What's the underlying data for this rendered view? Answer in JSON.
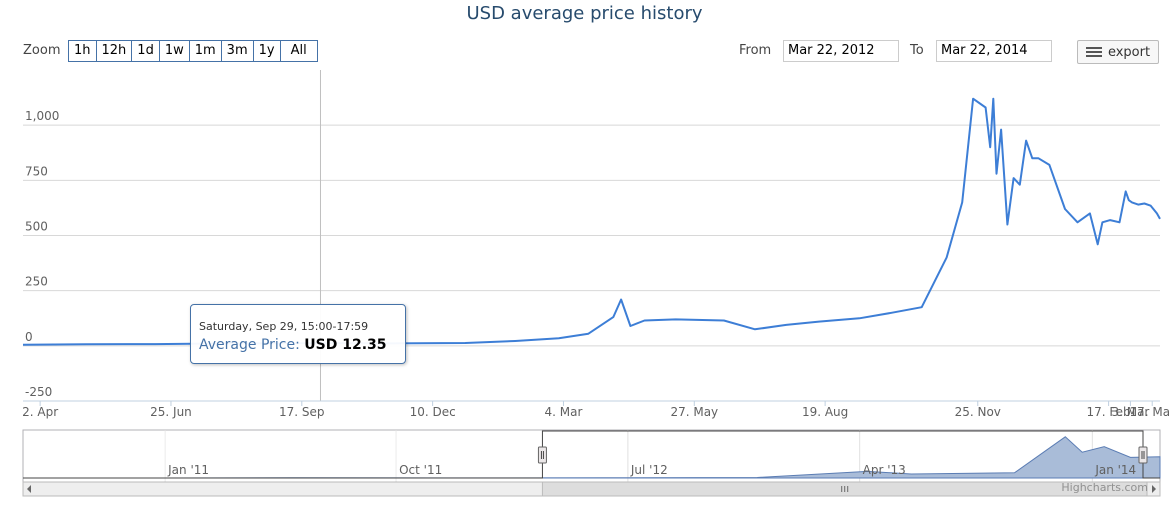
{
  "title": "USD average price history",
  "range_selector": {
    "zoom_label": "Zoom",
    "buttons": [
      "1h",
      "12h",
      "1d",
      "1w",
      "1m",
      "3m",
      "1y",
      "All"
    ],
    "from_label": "From",
    "from_value": "Mar 22, 2012",
    "to_label": "To",
    "to_value": "Mar 22, 2014"
  },
  "export_label": "export",
  "credits": "Highcharts.com",
  "tooltip": {
    "date": "Saturday, Sep 29, 15:00-17:59",
    "series_label": "Average Price:",
    "value": "USD 12.35"
  },
  "colors": {
    "series": "#4572a7",
    "line": "#3d7ed6",
    "navigator_fill": "#a9bcd8",
    "navigator_line": "#5b7db4"
  },
  "chart_data": [
    {
      "type": "line",
      "title": "USD average price history",
      "xlabel": "",
      "ylabel": "",
      "ylim": [
        -250,
        1250
      ],
      "yticks": [
        -250,
        0,
        250,
        500,
        750,
        1000
      ],
      "ytick_labels": [
        "-250",
        "0",
        "250",
        "500",
        "750",
        "1,000"
      ],
      "xlim": [
        "2012-03-22",
        "2014-03-22"
      ],
      "xticks": [
        {
          "date": "2012-04-02",
          "label": "2. Apr"
        },
        {
          "date": "2012-06-25",
          "label": "25. Jun"
        },
        {
          "date": "2012-09-17",
          "label": "17. Sep"
        },
        {
          "date": "2012-12-10",
          "label": "10. Dec"
        },
        {
          "date": "2013-03-04",
          "label": "4. Mar"
        },
        {
          "date": "2013-05-27",
          "label": "27. May"
        },
        {
          "date": "2013-08-19",
          "label": "19. Aug"
        },
        {
          "date": "2013-11-25",
          "label": "25. Nov"
        },
        {
          "date": "2014-02-17",
          "label": "17. Feb"
        },
        {
          "date": "2014-03-03",
          "label": "3. Mar"
        },
        {
          "date": "2014-03-17",
          "label": "17. Mar"
        }
      ],
      "grid": true,
      "legend": "none",
      "crosshair_date": "2012-09-29",
      "series": [
        {
          "name": "Average Price",
          "x": [
            "2012-03-22",
            "2012-05-01",
            "2012-06-15",
            "2012-08-01",
            "2012-09-29",
            "2012-11-15",
            "2012-12-31",
            "2013-02-01",
            "2013-03-01",
            "2013-03-20",
            "2013-04-05",
            "2013-04-10",
            "2013-04-16",
            "2013-04-25",
            "2013-05-15",
            "2013-06-15",
            "2013-07-05",
            "2013-07-25",
            "2013-08-15",
            "2013-09-10",
            "2013-10-01",
            "2013-10-20",
            "2013-11-05",
            "2013-11-15",
            "2013-11-22",
            "2013-11-30",
            "2013-12-03",
            "2013-12-05",
            "2013-12-07",
            "2013-12-10",
            "2013-12-14",
            "2013-12-18",
            "2013-12-22",
            "2013-12-26",
            "2013-12-30",
            "2014-01-03",
            "2014-01-10",
            "2014-01-20",
            "2014-01-28",
            "2014-02-05",
            "2014-02-10",
            "2014-02-13",
            "2014-02-18",
            "2014-02-24",
            "2014-02-28",
            "2014-03-02",
            "2014-03-04",
            "2014-03-08",
            "2014-03-12",
            "2014-03-16",
            "2014-03-20",
            "2014-03-22"
          ],
          "y": [
            5,
            7,
            8,
            11,
            12.35,
            11,
            13,
            22,
            34,
            55,
            130,
            210,
            90,
            115,
            120,
            115,
            75,
            95,
            110,
            125,
            150,
            175,
            400,
            650,
            1120,
            1080,
            900,
            1120,
            780,
            980,
            550,
            760,
            730,
            930,
            850,
            850,
            820,
            620,
            560,
            600,
            460,
            560,
            570,
            560,
            700,
            660,
            650,
            640,
            645,
            635,
            600,
            575
          ]
        }
      ]
    },
    {
      "type": "area",
      "title": "",
      "role": "navigator",
      "xticks": [
        {
          "date": "2011-01-01",
          "label": "Jan '11"
        },
        {
          "date": "2011-10-01",
          "label": "Oct '11"
        },
        {
          "date": "2012-07-01",
          "label": "Jul '12"
        },
        {
          "date": "2013-04-01",
          "label": "Apr '13"
        },
        {
          "date": "2014-01-01",
          "label": "Jan '14"
        }
      ],
      "xlim": [
        "2010-07-17",
        "2014-03-22"
      ],
      "ylim": [
        0,
        1250
      ],
      "selection": [
        "2012-03-22",
        "2014-03-22"
      ],
      "series": [
        {
          "x": [
            "2010-07-17",
            "2011-01-01",
            "2011-06-01",
            "2011-12-01",
            "2012-06-01",
            "2012-12-01",
            "2013-04-10",
            "2013-06-01",
            "2013-10-01",
            "2013-11-30",
            "2013-12-20",
            "2014-01-15",
            "2014-02-15",
            "2014-03-22"
          ],
          "y": [
            0,
            1,
            12,
            4,
            6,
            13,
            180,
            110,
            140,
            1120,
            700,
            850,
            560,
            575
          ]
        }
      ]
    }
  ]
}
